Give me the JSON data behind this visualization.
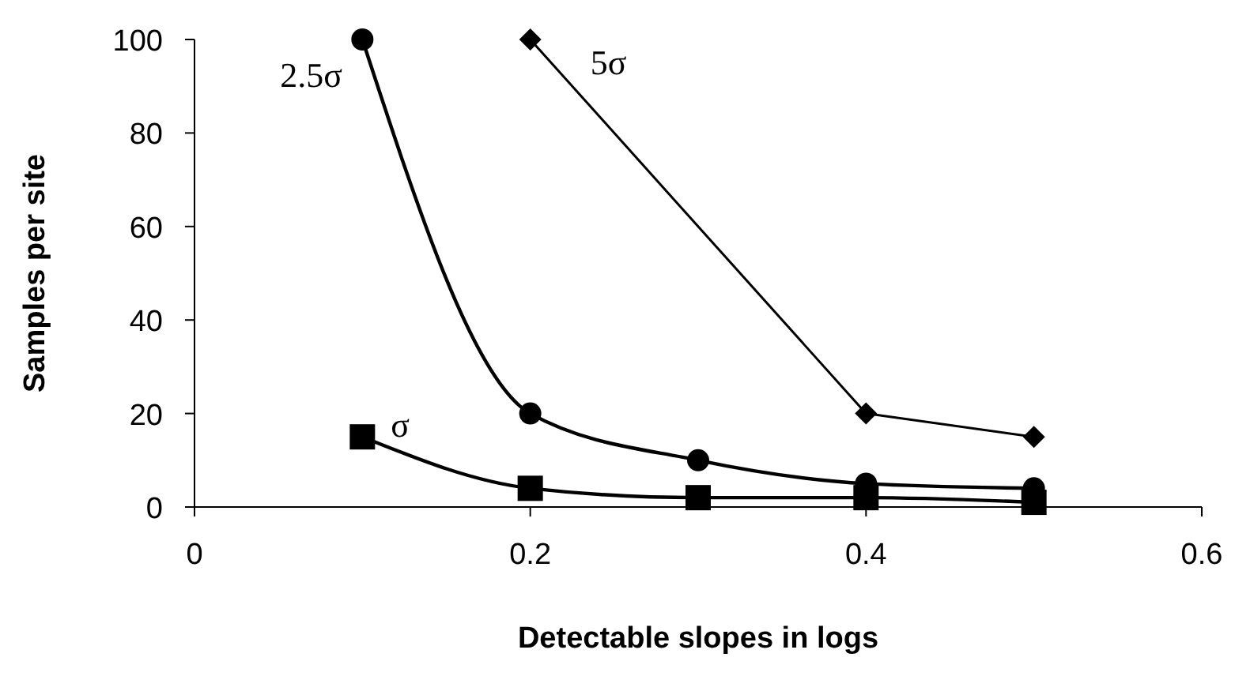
{
  "chart_data": {
    "type": "line",
    "xlabel": "Detectable slopes in logs",
    "ylabel": "Samples per site",
    "xlim": [
      0,
      0.6
    ],
    "xticks": [
      0,
      0.2,
      0.4,
      0.6
    ],
    "ylim": [
      0,
      100
    ],
    "yticks": [
      0,
      20,
      40,
      60,
      80,
      100
    ],
    "grid": false,
    "series": [
      {
        "name": "σ",
        "color": "#000000",
        "marker": "square",
        "x": [
          0.1,
          0.2,
          0.3,
          0.4,
          0.5
        ],
        "values": [
          15,
          4,
          2,
          2,
          1
        ]
      },
      {
        "name": "2.5σ",
        "color": "#000000",
        "marker": "circle",
        "x": [
          0.1,
          0.2,
          0.3,
          0.4,
          0.5
        ],
        "values": [
          100,
          20,
          10,
          5,
          4
        ]
      },
      {
        "name": "5σ",
        "color": "#000000",
        "marker": "diamond",
        "x": [
          0.2,
          0.4,
          0.5
        ],
        "values": [
          100,
          20,
          15
        ]
      }
    ]
  }
}
